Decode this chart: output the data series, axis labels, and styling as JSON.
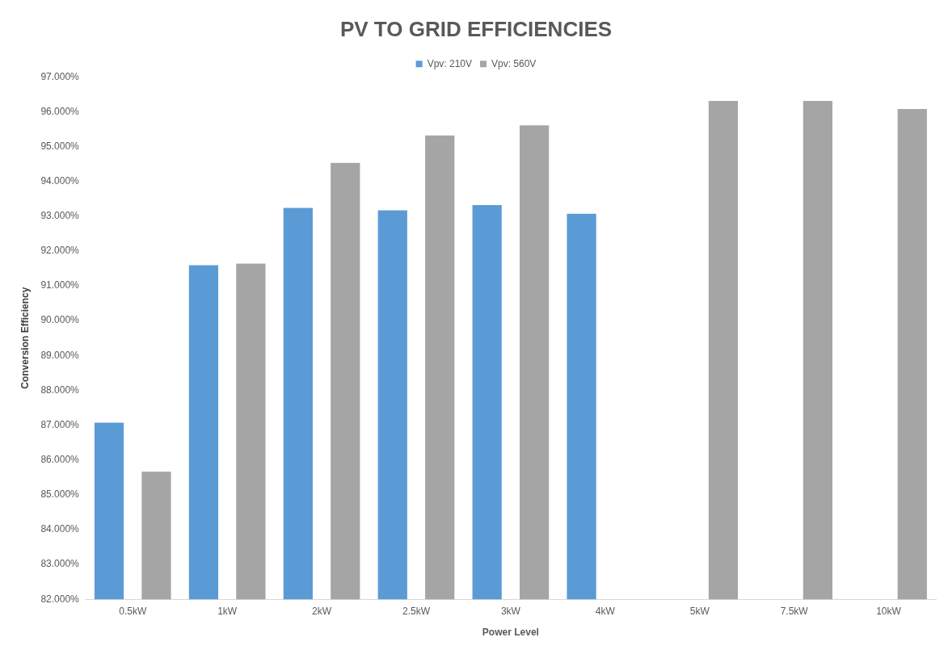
{
  "chart_data": {
    "type": "bar",
    "title": "PV TO GRID EFFICIENCIES",
    "xlabel": "Power Level",
    "ylabel": "Conversion Efficiency",
    "categories": [
      "0.5kW",
      "1kW",
      "2kW",
      "2.5kW",
      "3kW",
      "4kW",
      "5kW",
      "7.5kW",
      "10kW"
    ],
    "series": [
      {
        "name": "Vpv: 210V",
        "color": "#5b9bd5",
        "values": [
          87.07,
          91.59,
          93.24,
          93.17,
          93.32,
          93.07,
          null,
          null,
          null
        ]
      },
      {
        "name": "Vpv: 560V",
        "color": "#a5a5a5",
        "values": [
          85.66,
          91.64,
          94.53,
          95.32,
          95.61,
          null,
          96.31,
          96.31,
          96.08
        ]
      }
    ],
    "ylim": [
      82,
      97
    ],
    "yticks": [
      {
        "value": 82,
        "label": "82.000%"
      },
      {
        "value": 83,
        "label": "83.000%"
      },
      {
        "value": 84,
        "label": "84.000%"
      },
      {
        "value": 85,
        "label": "85.000%"
      },
      {
        "value": 86,
        "label": "86.000%"
      },
      {
        "value": 87,
        "label": "87.000%"
      },
      {
        "value": 88,
        "label": "88.000%"
      },
      {
        "value": 89,
        "label": "89.000%"
      },
      {
        "value": 90,
        "label": "90.000%"
      },
      {
        "value": 91,
        "label": "91.000%"
      },
      {
        "value": 92,
        "label": "92.000%"
      },
      {
        "value": 93,
        "label": "93.000%"
      },
      {
        "value": 94,
        "label": "94.000%"
      },
      {
        "value": 95,
        "label": "95.000%"
      },
      {
        "value": 96,
        "label": "96.000%"
      },
      {
        "value": 97,
        "label": "97.000%"
      }
    ],
    "grid": false,
    "legend": "top"
  }
}
